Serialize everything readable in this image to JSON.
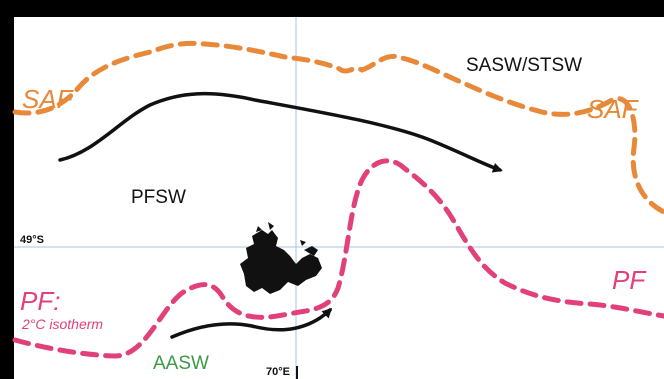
{
  "map": {
    "fronts": {
      "saf": {
        "label": "SAF",
        "color": "#E8893A"
      },
      "pf": {
        "label": "PF:",
        "label_east": "PF",
        "sublabel": "2°C isotherm",
        "color": "#E2407A"
      }
    },
    "water_masses": {
      "sasw_stsw": {
        "label": "SASW/STSW",
        "color": "#111111"
      },
      "pfsw": {
        "label": "PFSW",
        "color": "#111111"
      },
      "aasw": {
        "label": "AASW",
        "color": "#3C9A45"
      }
    },
    "graticule": {
      "latitude_label": "49°S",
      "longitude_label": "70°E",
      "color": "#A9C3DD"
    },
    "currents_color": "#111111",
    "island_color": "#111111"
  }
}
